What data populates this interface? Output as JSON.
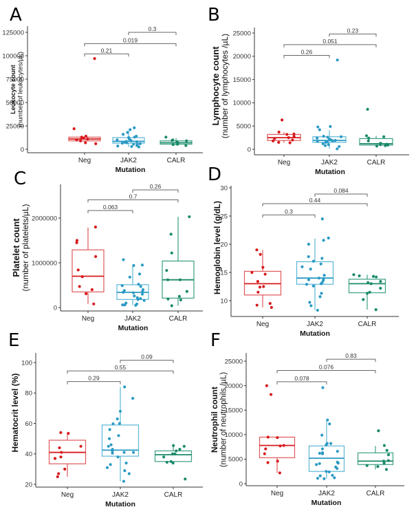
{
  "figure": {
    "groups": [
      "Neg",
      "JAK2",
      "CALR"
    ],
    "colors": {
      "Neg": "#d7191c",
      "JAK2": "#2b9ac4",
      "CALR": "#1a8a6a"
    },
    "box_colors": {
      "Neg": "#e0575a",
      "JAK2": "#5bb6d6",
      "CALR": "#3a9e82"
    }
  },
  "chart_data": [
    {
      "panel": "A",
      "type": "box",
      "xlabel": "Mutation",
      "ylabel_main": "Leukocyte count",
      "ylabel_sub": "(number of leukocytes/µL)",
      "ylabel_style": "small",
      "categories": [
        "Neg",
        "JAK2",
        "CALR"
      ],
      "ylim": [
        0,
        130000
      ],
      "yticks": [
        0,
        25000,
        50000,
        75000,
        100000,
        125000
      ],
      "boxes": [
        {
          "group": "Neg",
          "q1": 9000,
          "median": 11000,
          "q3": 13000,
          "whisker_low": 6000,
          "whisker_high": 14000
        },
        {
          "group": "JAK2",
          "q1": 6500,
          "median": 8500,
          "q3": 12500,
          "whisker_low": 2500,
          "whisker_high": 20000
        },
        {
          "group": "CALR",
          "q1": 5500,
          "median": 7000,
          "q3": 9000,
          "whisker_low": 4000,
          "whisker_high": 12000
        }
      ],
      "points": {
        "Neg": [
          97000,
          22000,
          14000,
          13000,
          12000,
          11000,
          10000,
          9000,
          7000,
          6000
        ],
        "JAK2": [
          23000,
          21000,
          18000,
          16000,
          14000,
          13000,
          12500,
          12000,
          11000,
          10000,
          9500,
          9000,
          8500,
          8000,
          7500,
          7000,
          6500,
          6000,
          5500,
          5000,
          4000,
          3500,
          3000,
          2500
        ],
        "CALR": [
          13000,
          10000,
          9500,
          9000,
          8000,
          7000,
          6500,
          6000,
          5500,
          5000,
          4000
        ]
      },
      "comparisons": [
        {
          "from": "Neg",
          "to": "JAK2",
          "p": "0.21",
          "y": 102000
        },
        {
          "from": "Neg",
          "to": "CALR",
          "p": "0.019",
          "y": 113000
        },
        {
          "from": "JAK2",
          "to": "CALR",
          "p": "0.3",
          "y": 125000
        }
      ]
    },
    {
      "panel": "B",
      "type": "box",
      "xlabel": "Mutation",
      "ylabel_main": "Lymphocyte count",
      "ylabel_sub": "(number of lymphocytes /µL)",
      "ylabel_style": "large",
      "categories": [
        "Neg",
        "JAK2",
        "CALR"
      ],
      "ylim": [
        0,
        26000
      ],
      "yticks": [
        0,
        5000,
        10000,
        15000,
        20000,
        25000
      ],
      "boxes": [
        {
          "group": "Neg",
          "q1": 1900,
          "median": 2500,
          "q3": 3200,
          "whisker_low": 1400,
          "whisker_high": 3700
        },
        {
          "group": "JAK2",
          "q1": 1500,
          "median": 1900,
          "q3": 2700,
          "whisker_low": 100,
          "whisker_high": 4100
        },
        {
          "group": "CALR",
          "q1": 900,
          "median": 1200,
          "q3": 2300,
          "whisker_low": 600,
          "whisker_high": 2900
        }
      ],
      "points": {
        "Neg": [
          6300,
          3700,
          3300,
          3200,
          2800,
          2500,
          2300,
          2000,
          1800,
          1500,
          1400
        ],
        "JAK2": [
          19200,
          4900,
          4800,
          4200,
          2800,
          2700,
          2600,
          2400,
          2200,
          2000,
          1900,
          1800,
          1700,
          1600,
          1500,
          1200,
          1000,
          800,
          600,
          100
        ],
        "CALR": [
          8600,
          2900,
          2700,
          2400,
          1800,
          1300,
          1100,
          1000,
          900,
          800,
          700
        ]
      },
      "comparisons": [
        {
          "from": "Neg",
          "to": "JAK2",
          "p": "0.26",
          "y": 20200
        },
        {
          "from": "Neg",
          "to": "CALR",
          "p": "0.051",
          "y": 22500
        },
        {
          "from": "JAK2",
          "to": "CALR",
          "p": "0.23",
          "y": 24800
        }
      ]
    },
    {
      "panel": "C",
      "type": "box",
      "xlabel": "Mutation",
      "ylabel_main": "Platelet count",
      "ylabel_sub": "(number of platelets/µL)",
      "ylabel_style": "large",
      "categories": [
        "Neg",
        "JAK2",
        "CALR"
      ],
      "ylim": [
        0,
        2700000
      ],
      "yticks": [
        0,
        1000000,
        2000000
      ],
      "boxes": [
        {
          "group": "Neg",
          "q1": 350000,
          "median": 700000,
          "q3": 1290000,
          "whisker_low": 80000,
          "whisker_high": 1790000
        },
        {
          "group": "JAK2",
          "q1": 180000,
          "median": 340000,
          "q3": 510000,
          "whisker_low": 50000,
          "whisker_high": 950000
        },
        {
          "group": "CALR",
          "q1": 210000,
          "median": 620000,
          "q3": 1040000,
          "whisker_low": 40000,
          "whisker_high": 2030000
        }
      ],
      "points": {
        "Neg": [
          1800000,
          1500000,
          1450000,
          1140000,
          840000,
          690000,
          470000,
          400000,
          310000,
          80000
        ],
        "JAK2": [
          1070000,
          950000,
          940000,
          750000,
          680000,
          520000,
          490000,
          470000,
          400000,
          380000,
          360000,
          340000,
          330000,
          300000,
          260000,
          220000,
          200000,
          180000,
          160000,
          100000,
          80000,
          60000,
          60000,
          50000
        ],
        "CALR": [
          2030000,
          1640000,
          1220000,
          830000,
          620000,
          620000,
          360000,
          250000,
          190000,
          170000,
          40000
        ]
      },
      "comparisons": [
        {
          "from": "Neg",
          "to": "JAK2",
          "p": "0.063",
          "y": 2170000
        },
        {
          "from": "Neg",
          "to": "CALR",
          "p": "0.7",
          "y": 2410000
        },
        {
          "from": "JAK2",
          "to": "CALR",
          "p": "0.26",
          "y": 2630000
        }
      ]
    },
    {
      "panel": "D",
      "type": "box",
      "xlabel": "Mutation",
      "ylabel_main": "Hemoglobin level (g/dL)",
      "ylabel_sub": "",
      "ylabel_style": "single",
      "categories": [
        "Neg",
        "JAK2",
        "CALR"
      ],
      "ylim": [
        7.5,
        30
      ],
      "yticks": [
        10,
        15,
        20,
        25,
        30
      ],
      "boxes": [
        {
          "group": "Neg",
          "q1": 11.0,
          "median": 13.0,
          "q3": 15.2,
          "whisker_low": 8.8,
          "whisker_high": 19.0
        },
        {
          "group": "JAK2",
          "q1": 12.9,
          "median": 14.0,
          "q3": 16.9,
          "whisker_low": 8.3,
          "whisker_high": 21.0
        },
        {
          "group": "CALR",
          "q1": 11.4,
          "median": 13.0,
          "q3": 13.8,
          "whisker_low": 8.4,
          "whisker_high": 14.6
        }
      ],
      "points": {
        "Neg": [
          19.0,
          18.2,
          15.9,
          15.0,
          14.7,
          13.4,
          12.5,
          12.4,
          11.5,
          9.5,
          9.2,
          8.8
        ],
        "JAK2": [
          24.5,
          21.1,
          20.7,
          20.0,
          17.8,
          17.5,
          17.0,
          16.5,
          16.0,
          15.6,
          14.5,
          14.0,
          13.9,
          13.7,
          13.6,
          13.2,
          13.0,
          12.9,
          12.6,
          11.3,
          10.7,
          9.7,
          9.1,
          8.3
        ],
        "CALR": [
          14.6,
          14.4,
          14.3,
          14.2,
          13.4,
          13.2,
          13.0,
          12.2,
          11.5,
          11.3,
          10.2,
          8.4
        ]
      },
      "comparisons": [
        {
          "from": "Neg",
          "to": "JAK2",
          "p": "0.3",
          "y": 25.2
        },
        {
          "from": "Neg",
          "to": "CALR",
          "p": "0.44",
          "y": 27.2
        },
        {
          "from": "JAK2",
          "to": "CALR",
          "p": "0.084",
          "y": 28.9
        }
      ]
    },
    {
      "panel": "E",
      "type": "box",
      "xlabel": "Mutation",
      "ylabel_main": "Hematocrit level (%)",
      "ylabel_sub": "",
      "ylabel_style": "single",
      "categories": [
        "Neg",
        "JAK2",
        "CALR"
      ],
      "ylim": [
        19,
        106
      ],
      "yticks": [
        20,
        40,
        60,
        80,
        100
      ],
      "boxes": [
        {
          "group": "Neg",
          "q1": 33.5,
          "median": 41.0,
          "q3": 49.0,
          "whisker_low": 25.0,
          "whisker_high": 54.0
        },
        {
          "group": "JAK2",
          "q1": 38.5,
          "median": 42.5,
          "q3": 59.0,
          "whisker_low": 22.0,
          "whisker_high": 84.0
        },
        {
          "group": "CALR",
          "q1": 35.0,
          "median": 39.5,
          "q3": 42.0,
          "whisker_low": 34.0,
          "whisker_high": 45.5
        }
      ],
      "points": {
        "Neg": [
          54.0,
          53.5,
          45.0,
          44.0,
          41.0,
          38.0,
          37.0,
          30.0,
          27.0,
          25.0
        ],
        "JAK2": [
          84.0,
          76.5,
          68.0,
          63.0,
          60.0,
          59.8,
          56.0,
          52.0,
          50.0,
          46.0,
          45.0,
          43.0,
          42.0,
          41.0,
          41.0,
          40.5,
          38.0,
          34.0,
          33.0,
          31.0,
          29.0,
          27.0,
          22.0
        ],
        "CALR": [
          45.5,
          45.0,
          43.0,
          42.0,
          40.0,
          40.0,
          38.0,
          35.0,
          34.5,
          34.0,
          23.5
        ]
      },
      "comparisons": [
        {
          "from": "Neg",
          "to": "JAK2",
          "p": "0.29",
          "y": 87.5
        },
        {
          "from": "Neg",
          "to": "CALR",
          "p": "0.55",
          "y": 94.5
        },
        {
          "from": "JAK2",
          "to": "CALR",
          "p": "0.09",
          "y": 101.5
        }
      ]
    },
    {
      "panel": "F",
      "type": "box",
      "xlabel": "Mutation",
      "ylabel_main": "Neutrophil count",
      "ylabel_sub": "(number of neutrophils /µL)",
      "ylabel_style": "medium",
      "categories": [
        "Neg",
        "JAK2",
        "CALR"
      ],
      "ylim": [
        0,
        26500
      ],
      "yticks": [
        0,
        5000,
        10000,
        15000,
        20000,
        25000
      ],
      "boxes": [
        {
          "group": "Neg",
          "q1": 5300,
          "median": 7800,
          "q3": 9500,
          "whisker_low": 2200,
          "whisker_high": 9500
        },
        {
          "group": "JAK2",
          "q1": 2500,
          "median": 5200,
          "q3": 7700,
          "whisker_low": 1000,
          "whisker_high": 13000
        },
        {
          "group": "CALR",
          "q1": 3900,
          "median": 4600,
          "q3": 6300,
          "whisker_low": 2900,
          "whisker_high": 7700
        }
      ],
      "points": {
        "Neg": [
          20000,
          18200,
          9500,
          9400,
          7800,
          7700,
          7100,
          6100,
          4600,
          4300,
          2200
        ],
        "JAK2": [
          19600,
          13000,
          12200,
          9900,
          8200,
          8200,
          7900,
          7100,
          6600,
          6300,
          6200,
          6100,
          4400,
          4200,
          4100,
          3900,
          3400,
          3100,
          2500,
          2400,
          1700,
          1600,
          1200,
          1100,
          1000
        ],
        "CALR": [
          10800,
          7800,
          6800,
          5900,
          4700,
          4600,
          4200,
          3700,
          3500,
          2900
        ]
      },
      "comparisons": [
        {
          "from": "Neg",
          "to": "JAK2",
          "p": "0.078",
          "y": 20800
        },
        {
          "from": "Neg",
          "to": "CALR",
          "p": "0.076",
          "y": 23100
        },
        {
          "from": "JAK2",
          "to": "CALR",
          "p": "0.83",
          "y": 25400
        }
      ]
    }
  ]
}
